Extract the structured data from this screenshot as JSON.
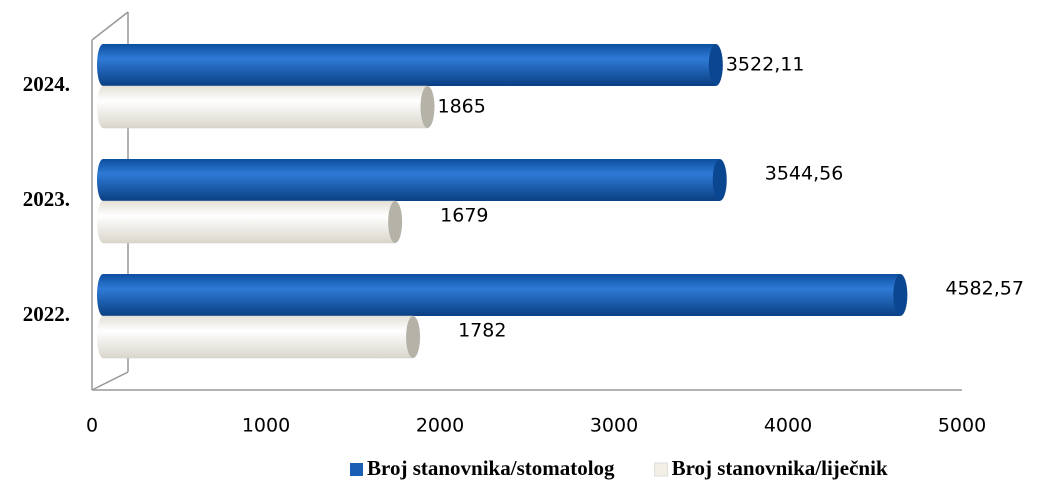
{
  "chart_data": {
    "type": "bar",
    "orientation": "horizontal",
    "categories": [
      "2022.",
      "2023.",
      "2024."
    ],
    "series": [
      {
        "name": "Broj stanovnika/stomatolog",
        "color": "#1a5fb4",
        "values": [
          4582.57,
          3544.56,
          3522.11
        ],
        "value_labels": [
          "4582,57",
          "3544,56",
          "3522,11"
        ]
      },
      {
        "name": "Broj stanovnika/liječnik",
        "color": "#f2f0e6",
        "values": [
          1782,
          1679,
          1865
        ]
      }
    ],
    "xlim": [
      0,
      5000
    ],
    "xticks": [
      0,
      1000,
      2000,
      3000,
      4000,
      5000
    ],
    "legend": "bottom"
  }
}
